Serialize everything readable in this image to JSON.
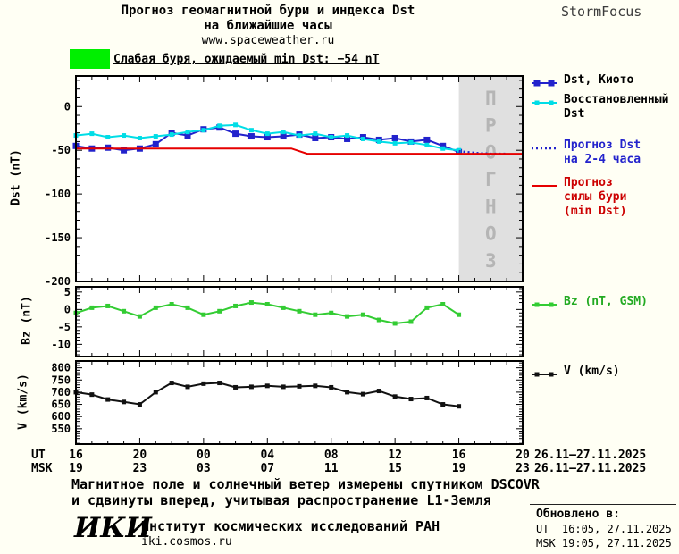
{
  "header": {
    "brand": "StormFocus",
    "title_line1": "Прогноз геомагнитной бури и индекса Dst",
    "title_line2": "на ближайшие часы",
    "website": "www.spaceweather.ru"
  },
  "alert": {
    "swatch_color": "#00ef00",
    "text": "Слабая буря, ожидаемый min Dst: −54 nT"
  },
  "axes": {
    "dst": "Dst (nT)",
    "bz": "Bz (nT)",
    "v": "V (km/s)"
  },
  "legend": {
    "dst": [
      {
        "lines": [
          "Dst, Киото"
        ],
        "color": "#000000"
      },
      {
        "lines": [
          "Восстановленный",
          "Dst"
        ],
        "color": "#000000"
      },
      {
        "lines": [
          "Прогноз Dst",
          "на 2-4 часа"
        ],
        "color": "#2222cc"
      },
      {
        "lines": [
          "Прогноз",
          "силы бури",
          "(min Dst)"
        ],
        "color": "#cc0000"
      }
    ],
    "bz": {
      "lines": [
        "Bz (nT, GSM)"
      ],
      "color": "#22aa22"
    },
    "v": {
      "lines": [
        "V (km/s)"
      ],
      "color": "#000000"
    }
  },
  "xaxis": {
    "row1_label": "UT",
    "row2_label": "MSK",
    "row1_ticks": [
      "16",
      "20",
      "00",
      "04",
      "08",
      "12",
      "16",
      "20"
    ],
    "row2_ticks": [
      "19",
      "23",
      "03",
      "07",
      "11",
      "15",
      "19",
      "23"
    ],
    "row1_date": "26.11–27.11.2025",
    "row2_date": "26.11–27.11.2025"
  },
  "footer": {
    "note_line1": "Магнитное поле и солнечный ветер измерены спутником DSCOVR",
    "note_line2": "и сдвинуты вперед, учитывая распространение L1-Земля",
    "logo": "ИКИ",
    "institute": "Институт космических исследований РАН",
    "site": "iki.cosmos.ru",
    "updated_label": "Обновлено в:",
    "updated_ut": "UT  16:05, 27.11.2025",
    "updated_msk": "MSK 19:05, 27.11.2025"
  },
  "chart_data": [
    {
      "type": "line",
      "title": "Прогноз геомагнитной бури и индекса Dst на ближайшие часы",
      "ylabel": "Dst (nT)",
      "xlim": [
        0,
        28
      ],
      "ylim": [
        -200,
        35
      ],
      "yticks": [
        0,
        -50,
        -100,
        -150,
        -200
      ],
      "xticks": [
        0,
        4,
        8,
        12,
        16,
        20,
        24,
        28
      ],
      "minor_x_step": 1,
      "minor_y_step": 10,
      "forecast_region": {
        "x_start": 24,
        "x_end": 28,
        "label": "ПРОГНОЗ",
        "fill": "#e0e0e0",
        "label_color": "#b5b5b5"
      },
      "series": [
        {
          "name": "Dst, Киото",
          "color": "#2222cc",
          "marker_size": 7,
          "line_width": 2,
          "x": [
            0,
            1,
            2,
            3,
            4,
            5,
            6,
            7,
            8,
            9,
            10,
            11,
            12,
            13,
            14,
            15,
            16,
            17,
            18,
            19,
            20,
            21,
            22,
            23,
            24
          ],
          "y": [
            -45,
            -48,
            -47,
            -50,
            -48,
            -43,
            -30,
            -33,
            -26,
            -24,
            -31,
            -34,
            -35,
            -34,
            -32,
            -36,
            -35,
            -37,
            -35,
            -38,
            -36,
            -40,
            -38,
            -45,
            -52
          ]
        },
        {
          "name": "Восстановленный Dst",
          "color": "#00dde6",
          "marker_size": 5,
          "line_width": 2,
          "x": [
            0,
            1,
            2,
            3,
            4,
            5,
            6,
            7,
            8,
            9,
            10,
            11,
            12,
            13,
            14,
            15,
            16,
            17,
            18,
            19,
            20,
            21,
            22,
            23,
            24
          ],
          "y": [
            -33,
            -31,
            -35,
            -33,
            -36,
            -34,
            -32,
            -29,
            -27,
            -22,
            -21,
            -27,
            -31,
            -29,
            -33,
            -31,
            -35,
            -33,
            -37,
            -40,
            -42,
            -41,
            -44,
            -48,
            -50
          ]
        },
        {
          "name": "Прогноз Dst на 2-4 часа",
          "color": "#2222cc",
          "dash": "2 3",
          "marker_size": 0,
          "line_width": 2.5,
          "x": [
            24,
            25,
            26,
            27
          ],
          "y": [
            -51,
            -53,
            -54,
            -54
          ]
        },
        {
          "name": "Прогноз силы бури (min Dst)",
          "color": "#e60000",
          "marker_size": 0,
          "line_width": 2,
          "x": [
            0,
            13.5,
            14.5,
            28
          ],
          "y": [
            -48,
            -48,
            -54,
            -54
          ]
        }
      ]
    },
    {
      "type": "line",
      "ylabel": "Bz (nT)",
      "xlim": [
        0,
        28
      ],
      "ylim": [
        -13.5,
        6.5
      ],
      "yticks": [
        5,
        0,
        -5,
        -10
      ],
      "xticks": [
        0,
        4,
        8,
        12,
        16,
        20,
        24,
        28
      ],
      "minor_x_step": 1,
      "minor_y_step": 1,
      "series": [
        {
          "name": "Bz (nT, GSM)",
          "color": "#33cc33",
          "marker_size": 5,
          "line_width": 2,
          "x": [
            0,
            1,
            2,
            3,
            4,
            5,
            6,
            7,
            8,
            9,
            10,
            11,
            12,
            13,
            14,
            15,
            16,
            17,
            18,
            19,
            20,
            21,
            22,
            23,
            24
          ],
          "y": [
            -1,
            0.5,
            1,
            -0.5,
            -2,
            0.5,
            1.5,
            0.5,
            -1.5,
            -0.5,
            1,
            2,
            1.5,
            0.5,
            -0.5,
            -1.5,
            -1,
            -2,
            -1.5,
            -3,
            -4,
            -3.5,
            0.5,
            1.5,
            -1.5
          ]
        }
      ]
    },
    {
      "type": "line",
      "ylabel": "V (km/s)",
      "xlim": [
        0,
        28
      ],
      "ylim": [
        487,
        828
      ],
      "yticks": [
        800,
        750,
        700,
        650,
        600,
        550
      ],
      "xticks": [
        0,
        4,
        8,
        12,
        16,
        20,
        24,
        28
      ],
      "minor_x_step": 1,
      "minor_y_step": 10,
      "series": [
        {
          "name": "V (km/s)",
          "color": "#111111",
          "marker_size": 5,
          "line_width": 2,
          "x": [
            0,
            1,
            2,
            3,
            4,
            5,
            6,
            7,
            8,
            9,
            10,
            11,
            12,
            13,
            14,
            15,
            16,
            17,
            18,
            19,
            20,
            21,
            22,
            23,
            24
          ],
          "y": [
            700,
            690,
            670,
            660,
            650,
            700,
            738,
            722,
            735,
            738,
            720,
            722,
            726,
            722,
            724,
            726,
            720,
            700,
            692,
            705,
            682,
            672,
            676,
            650,
            642
          ]
        }
      ]
    }
  ]
}
